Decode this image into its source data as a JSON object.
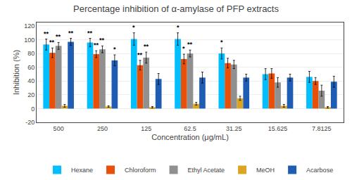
{
  "chart_data": {
    "type": "bar",
    "title": "Percentage inhibition of α-amylase of PFP extracts",
    "xlabel": "Concentration (μg/mL)",
    "ylabel": "Inhibition (%)",
    "categories": [
      "500",
      "250",
      "125",
      "62.5",
      "31.25",
      "15.625",
      "7.8125"
    ],
    "series": [
      {
        "name": "Hexane",
        "color": "#00BFFF",
        "values": [
          93,
          96,
          101,
          101,
          80,
          50,
          46
        ],
        "errors": [
          8,
          6,
          9,
          9,
          8,
          8,
          8
        ],
        "significance": [
          "**",
          "**",
          "*",
          "*",
          "*",
          null,
          null
        ]
      },
      {
        "name": "Chloroform",
        "color": "#E8500A",
        "values": [
          81,
          79,
          63,
          72,
          66,
          51,
          40
        ],
        "errors": [
          7,
          5,
          7,
          7,
          7,
          7,
          5
        ],
        "significance": [
          "**",
          "**",
          "**",
          "*",
          null,
          null,
          null
        ]
      },
      {
        "name": "Ethyl Acetate",
        "color": "#909090",
        "values": [
          91,
          86,
          74,
          80,
          64,
          38,
          26
        ],
        "errors": [
          5,
          5,
          8,
          5,
          6,
          7,
          8
        ],
        "significance": [
          "**",
          "**",
          "**",
          "**",
          null,
          null,
          null
        ]
      },
      {
        "name": "MeOH",
        "color": "#DAA520",
        "values": [
          4,
          3,
          2,
          7,
          15,
          4,
          2
        ],
        "errors": [
          2,
          1,
          1,
          2,
          3,
          2,
          1
        ],
        "significance": [
          null,
          null,
          null,
          null,
          null,
          null,
          null
        ]
      },
      {
        "name": "Acarbose",
        "color": "#1E5DB3",
        "values": [
          97,
          70,
          43,
          45,
          45,
          45,
          39
        ],
        "errors": [
          5,
          8,
          8,
          8,
          5,
          5,
          8
        ],
        "significance": [
          "**",
          "*",
          null,
          null,
          null,
          null,
          null
        ]
      }
    ],
    "ylim": [
      -20,
      125
    ],
    "yticks": [
      -20,
      0,
      20,
      40,
      60,
      80,
      100,
      120
    ],
    "grid": true,
    "legend": "bottom"
  }
}
